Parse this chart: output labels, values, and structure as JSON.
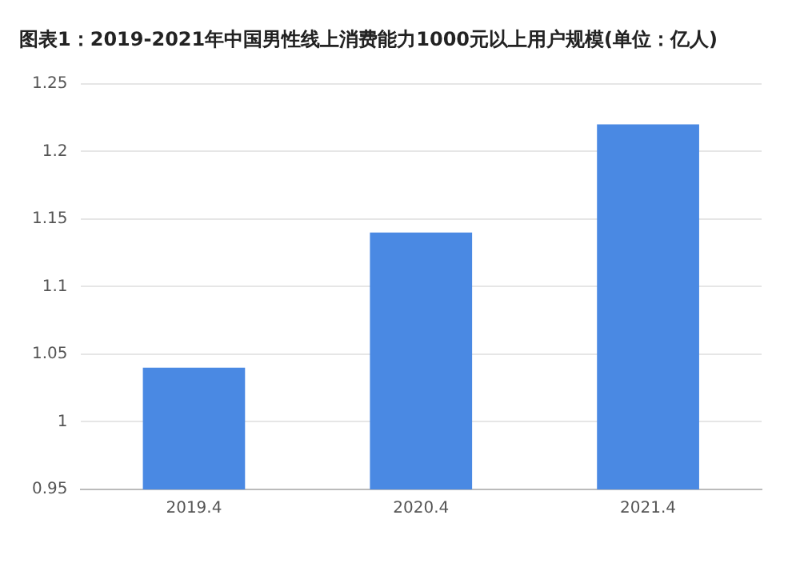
{
  "chart_data": {
    "type": "bar",
    "title": "图表1：2019-2021年中国男性线上消费能力1000元以上用户规模(单位：亿人)",
    "categories": [
      "2019.4",
      "2020.4",
      "2021.4"
    ],
    "values": [
      1.04,
      1.14,
      1.22
    ],
    "color": "#4a89e3",
    "ylim": [
      0.95,
      1.25
    ],
    "yticks": [
      0.95,
      1,
      1.05,
      1.1,
      1.15,
      1.2,
      1.25
    ],
    "grid": "y"
  }
}
